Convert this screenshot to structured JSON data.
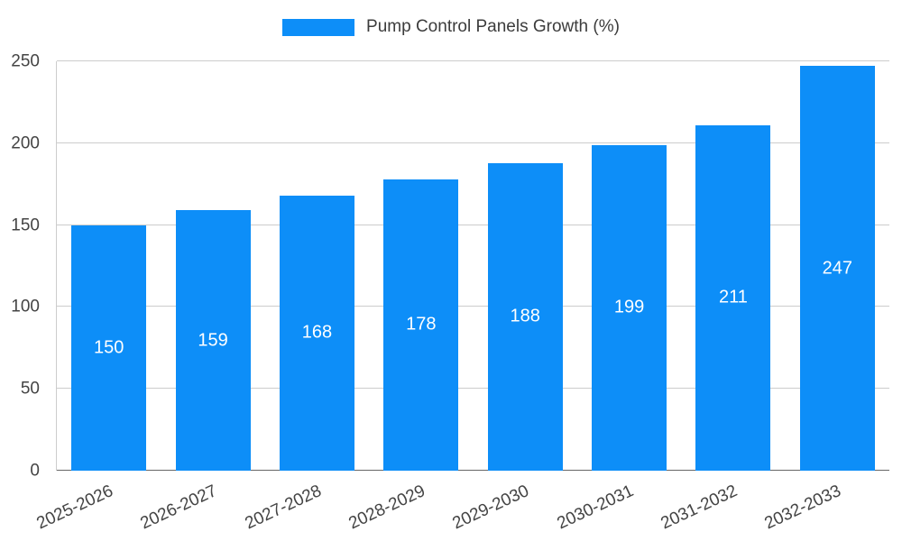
{
  "chart_data": {
    "type": "bar",
    "title": "Pump Control Panels Growth (%)",
    "categories": [
      "2025-2026",
      "2026-2027",
      "2027-2028",
      "2028-2029",
      "2029-2030",
      "2030-2031",
      "2031-2032",
      "2032-2033"
    ],
    "values": [
      150,
      159,
      168,
      178,
      188,
      199,
      211,
      247
    ],
    "xlabel": "",
    "ylabel": "",
    "ylim": [
      0,
      250
    ],
    "yticks": [
      0,
      50,
      100,
      150,
      200,
      250
    ],
    "grid": true,
    "legend_position": "top",
    "value_labels": "inside-center",
    "colors": {
      "bar": "#0d8ef8",
      "value_label": "#ffffff",
      "axis_text": "#444444",
      "gridline": "#cccccc",
      "baseline": "#666666",
      "title_text": "#3c3c3c",
      "background": "#ffffff"
    }
  }
}
